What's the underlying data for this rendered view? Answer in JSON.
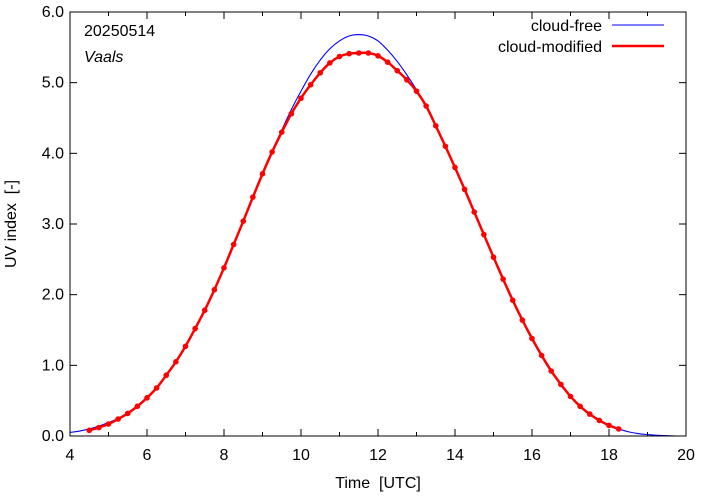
{
  "chart_data": {
    "type": "line",
    "date": "20250514",
    "location": "Vaals",
    "xlabel": "Time  [UTC]",
    "ylabel": "UV index  [-]",
    "xlim": [
      4,
      20
    ],
    "ylim": [
      0,
      6
    ],
    "xticks": [
      4,
      6,
      8,
      10,
      12,
      14,
      16,
      18,
      20
    ],
    "yticks": [
      "0.0",
      "1.0",
      "2.0",
      "3.0",
      "4.0",
      "5.0",
      "6.0"
    ],
    "grid": false,
    "legend_position": "top-right",
    "series": [
      {
        "name": "cloud-free",
        "color": "#0000ff",
        "markers": false,
        "x": [
          4.0,
          4.25,
          4.5,
          4.75,
          5.0,
          5.25,
          5.5,
          5.75,
          6.0,
          6.25,
          6.5,
          6.75,
          7.0,
          7.25,
          7.5,
          7.75,
          8.0,
          8.25,
          8.5,
          8.75,
          9.0,
          9.25,
          9.5,
          9.75,
          10.0,
          10.25,
          10.5,
          10.75,
          11.0,
          11.25,
          11.5,
          11.75,
          12.0,
          12.25,
          12.5,
          12.75,
          13.0,
          13.25,
          13.5,
          13.75,
          14.0,
          14.25,
          14.5,
          14.75,
          15.0,
          15.25,
          15.5,
          15.75,
          16.0,
          16.25,
          16.5,
          16.75,
          17.0,
          17.25,
          17.5,
          17.75,
          18.0,
          18.25,
          18.5,
          18.75,
          19.0,
          19.25,
          19.5,
          19.75
        ],
        "y": [
          0.05,
          0.07,
          0.1,
          0.14,
          0.19,
          0.25,
          0.33,
          0.43,
          0.55,
          0.69,
          0.86,
          1.05,
          1.27,
          1.52,
          1.78,
          2.07,
          2.38,
          2.71,
          3.04,
          3.38,
          3.71,
          4.03,
          4.33,
          4.62,
          4.88,
          5.12,
          5.32,
          5.48,
          5.59,
          5.66,
          5.68,
          5.66,
          5.59,
          5.46,
          5.3,
          5.11,
          4.9,
          4.66,
          4.39,
          4.1,
          3.8,
          3.49,
          3.17,
          2.85,
          2.53,
          2.22,
          1.92,
          1.64,
          1.38,
          1.14,
          0.92,
          0.73,
          0.56,
          0.42,
          0.31,
          0.22,
          0.15,
          0.1,
          0.06,
          0.035,
          0.02,
          0.01,
          0.005,
          0.0
        ]
      },
      {
        "name": "cloud-modified",
        "color": "#ff0000",
        "markers": true,
        "x": [
          4.5,
          4.75,
          5.0,
          5.25,
          5.5,
          5.75,
          6.0,
          6.25,
          6.5,
          6.75,
          7.0,
          7.25,
          7.5,
          7.75,
          8.0,
          8.25,
          8.5,
          8.75,
          9.0,
          9.25,
          9.5,
          9.75,
          10.0,
          10.25,
          10.5,
          10.75,
          11.0,
          11.25,
          11.5,
          11.75,
          12.0,
          12.25,
          12.5,
          12.75,
          13.0,
          13.25,
          13.5,
          13.75,
          14.0,
          14.25,
          14.5,
          14.75,
          15.0,
          15.25,
          15.5,
          15.75,
          16.0,
          16.25,
          16.5,
          16.75,
          17.0,
          17.25,
          17.5,
          17.75,
          18.0,
          18.25
        ],
        "y": [
          0.08,
          0.12,
          0.17,
          0.24,
          0.32,
          0.42,
          0.54,
          0.68,
          0.86,
          1.05,
          1.27,
          1.52,
          1.78,
          2.07,
          2.38,
          2.71,
          3.04,
          3.38,
          3.71,
          4.02,
          4.3,
          4.56,
          4.78,
          4.97,
          5.14,
          5.28,
          5.37,
          5.41,
          5.42,
          5.42,
          5.38,
          5.29,
          5.17,
          5.04,
          4.88,
          4.67,
          4.39,
          4.1,
          3.8,
          3.49,
          3.17,
          2.85,
          2.53,
          2.22,
          1.92,
          1.64,
          1.38,
          1.14,
          0.92,
          0.73,
          0.56,
          0.42,
          0.31,
          0.22,
          0.15,
          0.1
        ]
      }
    ]
  }
}
